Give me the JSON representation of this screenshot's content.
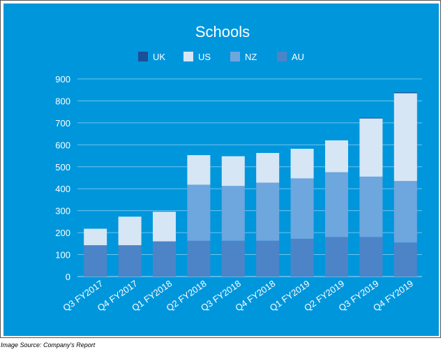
{
  "source_note": "Image Source: Company's Report",
  "colors": {
    "background": "#0096dc",
    "gridline": "#6ec4ee",
    "text": "#ffffff",
    "UK": "#1b4f97",
    "US": "#d6e6f4",
    "NZ": "#6ea6de",
    "AU": "#4d84c8"
  },
  "chart_data": {
    "type": "bar",
    "stacked": true,
    "title": "Schools",
    "xlabel": "",
    "ylabel": "",
    "ylim": [
      0,
      900
    ],
    "yticks": [
      0,
      100,
      200,
      300,
      400,
      500,
      600,
      700,
      800,
      900
    ],
    "grid": true,
    "legend_position": "top",
    "categories": [
      "Q3 FY2017",
      "Q4 FY2017",
      "Q1 FY2018",
      "Q2 FY2018",
      "Q3 FY2018",
      "Q4 FY2018",
      "Q1 FY2019",
      "Q2 FY2019",
      "Q3 FY2019",
      "Q4 FY2019"
    ],
    "series": [
      {
        "name": "UK",
        "values": [
          0,
          0,
          0,
          0,
          0,
          0,
          0,
          0,
          3,
          4
        ]
      },
      {
        "name": "US",
        "values": [
          75,
          130,
          135,
          135,
          135,
          135,
          135,
          145,
          265,
          400
        ]
      },
      {
        "name": "NZ",
        "values": [
          0,
          0,
          0,
          255,
          250,
          265,
          275,
          295,
          275,
          280
        ]
      },
      {
        "name": "AU",
        "values": [
          143,
          143,
          160,
          163,
          163,
          163,
          172,
          180,
          180,
          155
        ]
      }
    ],
    "legend_order": [
      "UK",
      "US",
      "NZ",
      "AU"
    ]
  }
}
